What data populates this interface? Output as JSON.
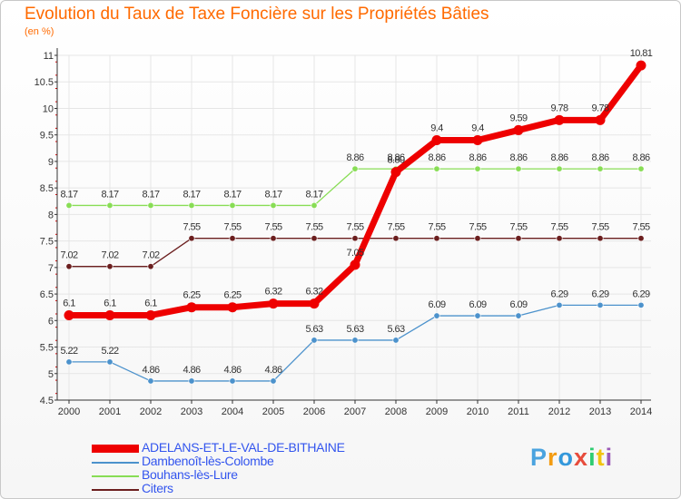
{
  "title": "Evolution du Taux de Taxe Foncière sur les Propriétés Bâties",
  "subtitle": "(en %)",
  "logo_text": "Proxiti",
  "colors": {
    "title": "#ff6a00",
    "axis_text": "#333333",
    "grid": "#e6e6e6",
    "legend_text": "#3355ee"
  },
  "chart_data": {
    "type": "line",
    "title": "Evolution du Taux de Taxe Foncière sur les Propriétés Bâties",
    "ylabel": "(en %)",
    "xlabel": "",
    "x": [
      "2000",
      "2001",
      "2002",
      "2003",
      "2004",
      "2005",
      "2006",
      "2007",
      "2008",
      "2009",
      "2010",
      "2011",
      "2012",
      "2013",
      "2014"
    ],
    "yticks": [
      "4.5",
      "5",
      "5.5",
      "6",
      "6.5",
      "7",
      "7.5",
      "8",
      "8.5",
      "9",
      "9.5",
      "10",
      "10.5",
      "11"
    ],
    "ylim": [
      4.5,
      11
    ],
    "grid": true,
    "legend_position": "bottom-left",
    "series": [
      {
        "name": "ADELANS-ET-LE-VAL-DE-BITHAINE",
        "color": "#ee0000",
        "values": [
          6.1,
          6.1,
          6.1,
          6.25,
          6.25,
          6.32,
          6.32,
          7.05,
          8.8,
          9.4,
          9.4,
          9.59,
          9.78,
          9.78,
          10.81
        ],
        "labels": [
          "6.1",
          "6.1",
          "6.1",
          "6.25",
          "6.25",
          "6.32",
          "6.32",
          "7.05",
          "8.80",
          "9.4",
          "9.4",
          "9.59",
          "9.78",
          "9.78",
          "10.81"
        ]
      },
      {
        "name": "Dambenoît-lès-Colombe",
        "color": "#4c92cc",
        "values": [
          5.22,
          5.22,
          4.86,
          4.86,
          4.86,
          4.86,
          5.63,
          5.63,
          5.63,
          6.09,
          6.09,
          6.09,
          6.29,
          6.29,
          6.29
        ],
        "labels": [
          "5.22",
          "5.22",
          "4.86",
          "4.86",
          "4.86",
          "4.86",
          "5.63",
          "5.63",
          "5.63",
          "6.09",
          "6.09",
          "6.09",
          "6.29",
          "6.29",
          "6.29"
        ]
      },
      {
        "name": "Bouhans-lès-Lure",
        "color": "#88dd55",
        "values": [
          8.17,
          8.17,
          8.17,
          8.17,
          8.17,
          8.17,
          8.17,
          8.86,
          8.86,
          8.86,
          8.86,
          8.86,
          8.86,
          8.86,
          8.86
        ],
        "labels": [
          "8.17",
          "8.17",
          "8.17",
          "8.17",
          "8.17",
          "8.17",
          "8.17",
          "8.86",
          "8.86",
          "8.86",
          "8.86",
          "8.86",
          "8.86",
          "8.86",
          "8.86"
        ]
      },
      {
        "name": "Citers",
        "color": "#6b1e1e",
        "values": [
          7.02,
          7.02,
          7.02,
          7.55,
          7.55,
          7.55,
          7.55,
          7.55,
          7.55,
          7.55,
          7.55,
          7.55,
          7.55,
          7.55,
          7.55
        ],
        "labels": [
          "7.02",
          "7.02",
          "7.02",
          "7.55",
          "7.55",
          "7.55",
          "7.55",
          "7.55",
          "7.55",
          "7.55",
          "7.55",
          "7.55",
          "7.55",
          "7.55",
          "7.55"
        ]
      }
    ]
  }
}
